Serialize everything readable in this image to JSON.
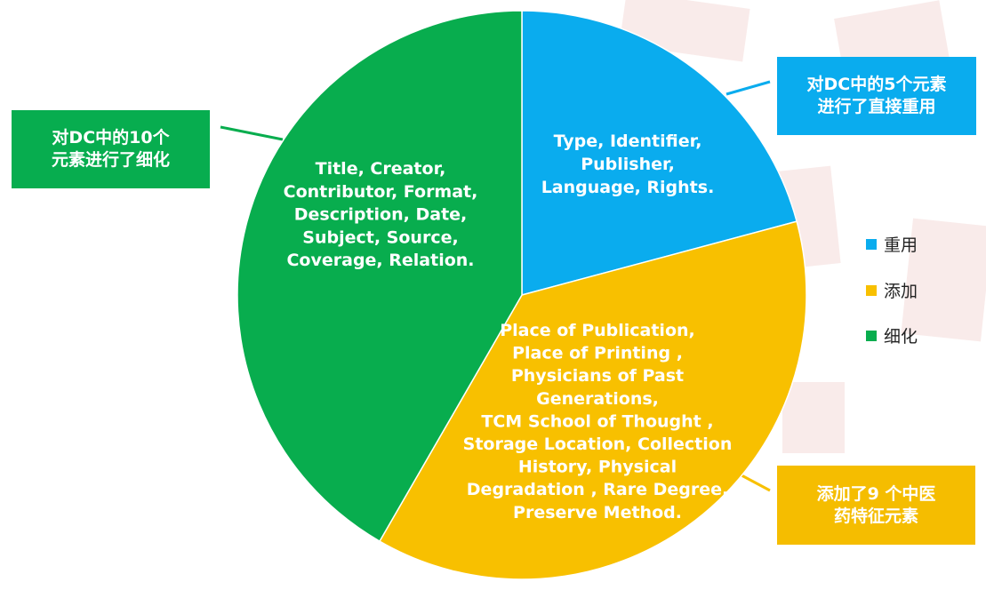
{
  "colors": {
    "reuse": "#0aacee",
    "add": "#f8c000",
    "refine": "#08ad4e"
  },
  "chart_data": {
    "type": "pie",
    "slices": [
      {
        "label": "重用",
        "value": 5,
        "color": "#0aacee",
        "text": [
          "Type, Identifier,",
          "Publisher,",
          "Language, Rights."
        ]
      },
      {
        "label": "添加",
        "value": 9,
        "color": "#f8c000",
        "text": [
          "Place of Publication,",
          "Place of Printing ,",
          "Physicians of Past",
          "Generations,",
          "TCM School of Thought ,",
          "Storage Location, Collection",
          "History,  Physical",
          "Degradation , Rare Degree,",
          "Preserve Method."
        ]
      },
      {
        "label": "细化",
        "value": 10,
        "color": "#08ad4e",
        "text": [
          "Title, Creator,",
          "Contributor, Format,",
          "Description, Date,",
          "Subject, Source,",
          "Coverage, Relation."
        ]
      }
    ],
    "legend": [
      "重用",
      "添加",
      "细化"
    ],
    "legend_position": "right"
  },
  "callouts": {
    "reuse": [
      "对DC中的5个元素",
      "进行了直接重用"
    ],
    "refine": [
      "对DC中的10个",
      "元素进行了细化"
    ],
    "add": [
      "添加了9 个中医",
      "药特征元素"
    ]
  }
}
